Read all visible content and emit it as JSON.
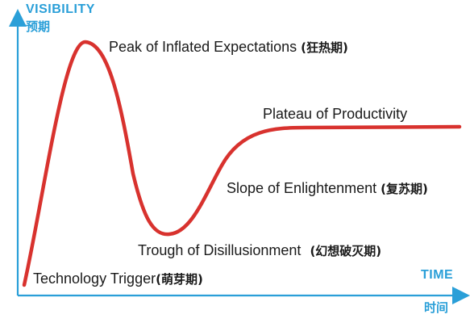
{
  "axes": {
    "y_label": "VISIBILITY",
    "y_label_cn": "预期",
    "x_label": "TIME",
    "x_label_cn": "时间",
    "axis_color": "#2a9fd8"
  },
  "curve": {
    "color": "#d8322e"
  },
  "phases": [
    {
      "name": "Technology Trigger",
      "cn": "(萌芽期)"
    },
    {
      "name": "Peak of Inflated Expectations",
      "cn": "(狂热期)"
    },
    {
      "name": "Trough of Disillusionment",
      "cn": "(幻想破灭期)"
    },
    {
      "name": "Slope of Enlightenment",
      "cn": "(复苏期)"
    },
    {
      "name": "Plateau of Productivity",
      "cn": ""
    }
  ]
}
